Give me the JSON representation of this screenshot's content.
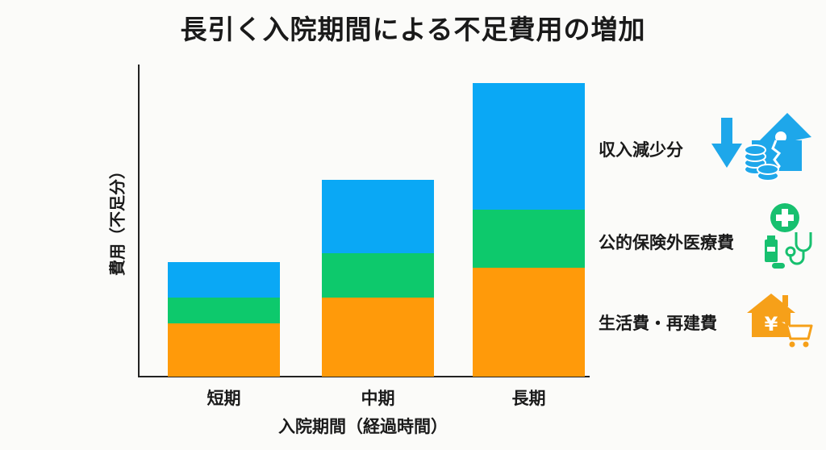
{
  "title": "長引く入院期間による不足費用の増加",
  "chart_data": {
    "type": "bar",
    "stacked": true,
    "title": "長引く入院期間による不足費用の増加",
    "xlabel": "入院期間（経過時間）",
    "ylabel": "費用（不足分）",
    "categories": [
      "短期",
      "中期",
      "長期"
    ],
    "series": [
      {
        "name": "生活費・再建費",
        "color": "#ff9a0a",
        "values": [
          18,
          27,
          37
        ]
      },
      {
        "name": "公的保険外医療費",
        "color": "#0dc96c",
        "values": [
          9,
          15,
          20
        ]
      },
      {
        "name": "収入減少分",
        "color": "#0aa8f5",
        "values": [
          12,
          25,
          43
        ]
      }
    ],
    "totals": [
      39,
      67,
      100
    ],
    "ylim": [
      0,
      105
    ],
    "y_ticks": "none (relative values, estimated from bar heights; tallest = 100)",
    "grid": false,
    "legend_position": "right",
    "legend_order_top_to_bottom": [
      "収入減少分",
      "公的保険外医療費",
      "生活費・再建費"
    ]
  },
  "axis": {
    "xlabel": "入院期間（経過時間）",
    "ylabel": "費用（不足分）",
    "categories": [
      "短期",
      "中期",
      "長期"
    ]
  },
  "legend": [
    {
      "label": "収入減少分",
      "icon": "income-decrease-icon",
      "color": "#0aa8f5"
    },
    {
      "label": "公的保険外医療費",
      "icon": "medical-cost-icon",
      "color": "#0dc96c"
    },
    {
      "label": "生活費・再建費",
      "icon": "living-cost-icon",
      "color": "#ff9a0a"
    }
  ]
}
